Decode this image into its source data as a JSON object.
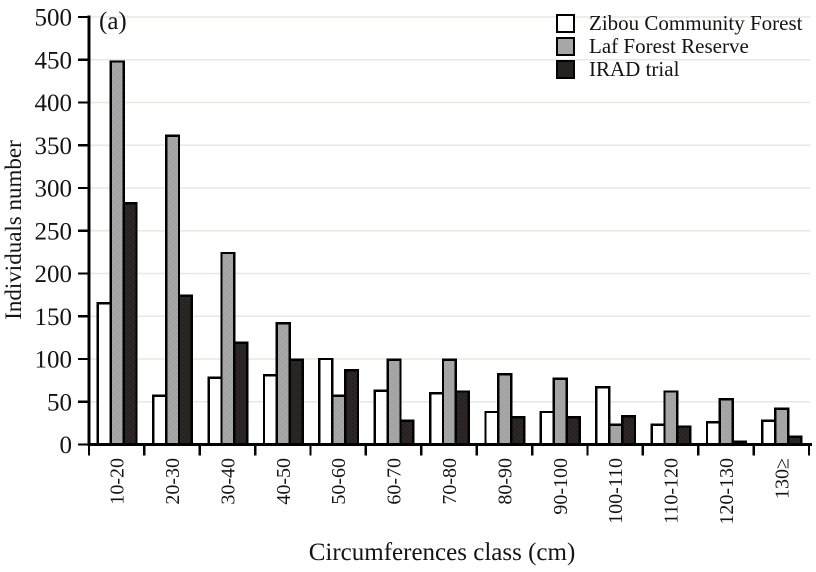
{
  "chart_data": {
    "type": "bar",
    "panel_label": "(a)",
    "title": "",
    "xlabel": "Circumferences class (cm)",
    "ylabel": "Individuals number",
    "categories": [
      "10-20",
      "20-30",
      "30-40",
      "40-50",
      "50-60",
      "60-70",
      "70-80",
      "80-90",
      "90-100",
      "100-110",
      "110-120",
      "120-130",
      "130≥"
    ],
    "series": [
      {
        "name": "Zibou Community Forest",
        "color": "#ffffff",
        "dot_color": null,
        "values": [
          165,
          57,
          78,
          81,
          100,
          63,
          60,
          38,
          38,
          67,
          23,
          26,
          28
        ]
      },
      {
        "name": "Laf Forest Reserve",
        "color": "#a7a7a7",
        "dot_color": "#929292",
        "values": [
          448,
          361,
          224,
          142,
          57,
          99,
          99,
          82,
          77,
          23,
          62,
          53,
          42
        ]
      },
      {
        "name": "IRAD trial",
        "color": "#262221",
        "dot_color": "#4a3b28",
        "values": [
          282,
          174,
          119,
          99,
          87,
          28,
          62,
          32,
          32,
          33,
          21,
          3,
          9
        ]
      }
    ],
    "ylim": [
      0,
      500
    ],
    "ytick_interval": 50,
    "grid": "horizontal",
    "gridline_color": "#e9e7e1",
    "axis_color": "#000000",
    "bar_edge_color": "#000000",
    "legend_position": "top-right"
  }
}
